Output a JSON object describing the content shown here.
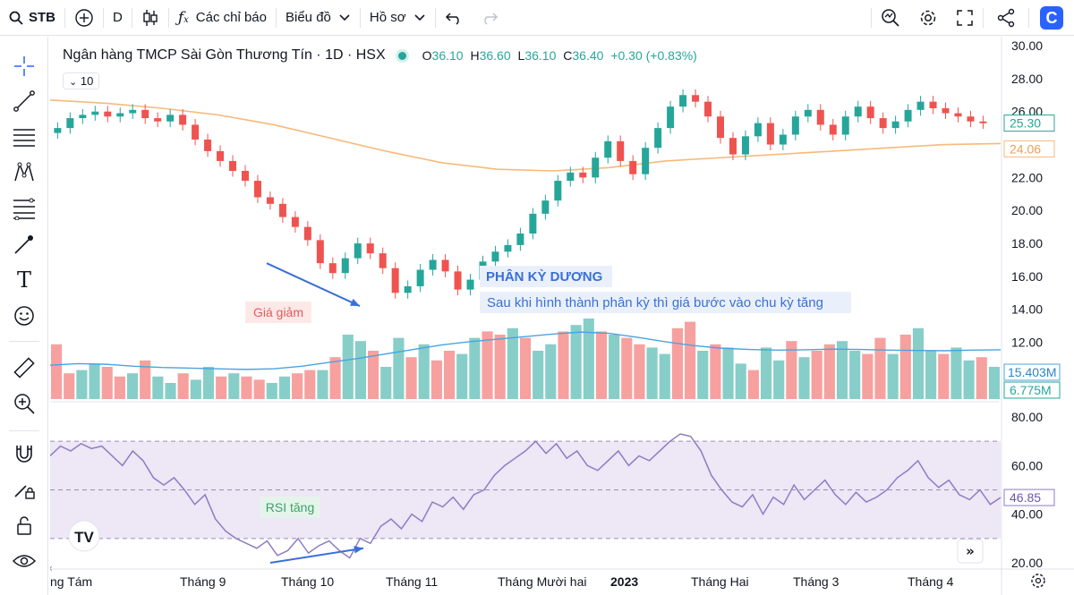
{
  "topbar": {
    "symbol": "STB",
    "interval": "D",
    "indicators_label": "Các chỉ báo",
    "chart_type_label": "Biểu đồ",
    "profile_label": "Hồ sơ"
  },
  "legend": {
    "title": "Ngân hàng TMCP Sài Gòn Thương Tín · 1D · HSX",
    "o_label": "O",
    "o_value": "36.10",
    "h_label": "H",
    "h_value": "36.60",
    "l_label": "L",
    "l_value": "36.10",
    "c_label": "C",
    "c_value": "36.40",
    "change": "+0.30 (+0.83%)",
    "ma_length": "10"
  },
  "annotations": {
    "divergence_title": "PHÂN KỲ DƯƠNG",
    "divergence_note": "Sau khi hình thành phân kỳ thì giá bước vào chu kỳ tăng",
    "price_down": "Giá giảm",
    "rsi_up": "RSI tăng"
  },
  "colors": {
    "up": "#26a69a",
    "down": "#ef5350",
    "ma": "#f7b97a",
    "volume_ma": "#4aa3df",
    "rsi": "#8e7cc3",
    "annotation_blue": "#3a6fd8",
    "accent": "#2962ff"
  },
  "chart_data": {
    "type": "candlestick",
    "price_axis": {
      "ticks": [
        "30.00",
        "28.00",
        "26.00",
        "22.00",
        "20.00",
        "18.00",
        "16.00",
        "14.00",
        "12.00"
      ],
      "range": [
        11,
        30
      ]
    },
    "price_badges": {
      "last": "25.30",
      "ma": "24.06"
    },
    "volume_badges": {
      "volume_ma": "15.403M",
      "volume": "6.775M"
    },
    "rsi_axis": {
      "ticks": [
        "80.00",
        "60.00",
        "40.00",
        "20.00"
      ],
      "range": [
        20,
        80
      ],
      "upper_band": 70,
      "middle": 50,
      "lower_band": 30
    },
    "rsi_badge": "46.85",
    "time_axis": [
      "ng Tám",
      "Tháng 9",
      "Tháng 10",
      "Tháng 11",
      "Tháng Mười hai",
      "2023",
      "Tháng Hai",
      "Tháng 3",
      "Tháng 4"
    ],
    "close_path": [
      25.0,
      25.6,
      25.8,
      26.0,
      25.7,
      25.9,
      26.1,
      25.6,
      25.4,
      25.8,
      25.2,
      24.3,
      23.6,
      23.0,
      22.4,
      21.8,
      20.8,
      20.4,
      19.6,
      19.0,
      18.2,
      16.8,
      16.2,
      17.1,
      18.0,
      17.4,
      16.5,
      15.0,
      15.4,
      16.4,
      17.0,
      16.3,
      15.2,
      15.8,
      16.9,
      17.5,
      17.9,
      18.6,
      19.8,
      20.6,
      21.8,
      22.3,
      22.0,
      23.2,
      24.2,
      23.0,
      22.2,
      23.8,
      25.0,
      26.3,
      27.0,
      26.6,
      25.7,
      24.4,
      23.4,
      24.5,
      25.3,
      24.0,
      24.6,
      25.7,
      26.1,
      25.2,
      24.6,
      25.7,
      26.3,
      25.6,
      25.0,
      25.4,
      26.1,
      26.6,
      26.2,
      25.9,
      25.7,
      25.4,
      25.3
    ],
    "ma200_path": [
      26.7,
      26.5,
      26.2,
      25.8,
      25.2,
      24.4,
      23.6,
      22.9,
      22.5,
      22.4,
      22.6,
      23.0,
      23.2,
      23.4,
      23.6,
      23.8,
      24.0,
      24.06
    ],
    "volume_path": [
      17,
      8,
      9,
      11,
      10,
      7,
      8,
      12,
      7,
      5,
      8,
      6,
      10,
      7,
      8,
      7,
      6,
      5,
      7,
      8,
      9,
      9,
      13,
      20,
      18,
      15,
      10,
      19,
      13,
      17,
      12,
      15,
      14,
      19,
      21,
      20,
      22,
      19,
      15,
      17,
      21,
      23,
      25,
      21,
      20,
      19,
      17,
      16,
      14,
      22,
      24,
      15,
      17,
      16,
      11,
      9,
      16,
      12,
      18,
      13,
      15,
      17,
      18,
      15,
      14,
      19,
      14,
      20,
      22,
      15,
      14,
      16,
      12,
      13,
      10
    ],
    "volume_ma_path": [
      10.5,
      11.0,
      10.8,
      10.2,
      9.8,
      9.6,
      9.4,
      9.2,
      9.4,
      10.2,
      11.4,
      12.6,
      14.0,
      15.4,
      16.8,
      17.8,
      18.6,
      19.4,
      20.2,
      20.8,
      20.4,
      19.2,
      17.8,
      16.6,
      15.8,
      15.4,
      15.2,
      15.3,
      15.5,
      15.4,
      15.2,
      15.1,
      15.0,
      15.2,
      15.3
    ],
    "rsi_path": [
      64,
      68,
      66,
      69,
      67,
      68,
      64,
      60,
      66,
      62,
      55,
      52,
      55,
      50,
      44,
      48,
      38,
      33,
      30,
      28,
      26,
      29,
      23,
      25,
      30,
      24,
      27,
      29,
      25,
      22,
      30,
      28,
      35,
      38,
      34,
      40,
      37,
      45,
      43,
      47,
      42,
      48,
      50,
      56,
      60,
      63,
      66,
      70,
      65,
      69,
      63,
      66,
      60,
      58,
      62,
      66,
      60,
      64,
      62,
      66,
      70,
      73,
      72,
      66,
      56,
      50,
      45,
      43,
      48,
      40,
      47,
      44,
      52,
      46,
      50,
      54,
      48,
      44,
      49,
      45,
      47,
      50,
      55,
      58,
      62,
      55,
      51,
      54,
      48,
      46,
      50,
      44,
      46.85
    ],
    "divergence_price": {
      "from": 16.8,
      "to": 14.2
    },
    "divergence_rsi": {
      "from": 20,
      "to": 26
    }
  }
}
